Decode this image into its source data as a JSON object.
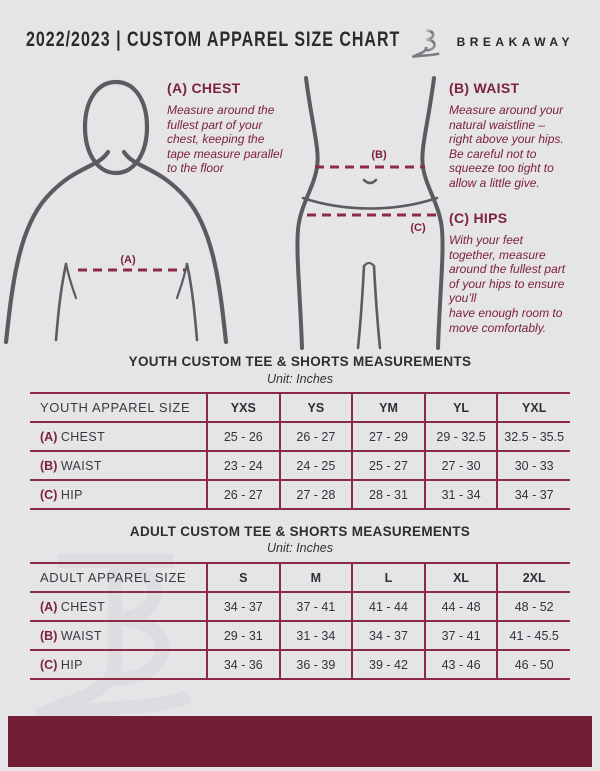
{
  "header": {
    "title": "2022/2023  |  CUSTOM APPAREL SIZE CHART",
    "brand": "BREAKAWAY"
  },
  "colors": {
    "background": "#e5e4e7",
    "maroon_text": "#7c2140",
    "table_line": "#8b2b45",
    "bottom_bar": "#741e36"
  },
  "measurements": [
    {
      "heading": "(A) CHEST",
      "body": "Measure around the\nfullest part of your\nchest, keeping the\ntape measure parallel\nto the floor"
    },
    {
      "heading": "(B) WAIST",
      "body": "Measure around your\nnatural waistline –\nright above your hips.\nBe careful not to\nsqueeze too tight to\nallow a little give."
    },
    {
      "heading": "(C) HIPS",
      "body": "With your feet\ntogether, measure\naround the fullest part\nof your hips to ensure\nyou’ll\nhave enough room to\nmove comfortably."
    }
  ],
  "diagram_labels": {
    "chest": "(A)",
    "waist": "(B)",
    "hips": "(C)"
  },
  "tables": {
    "youth": {
      "title": "YOUTH CUSTOM TEE & SHORTS MEASUREMENTS",
      "unit": "Unit: Inches",
      "columns": [
        "YOUTH APPAREL SIZE",
        "YXS",
        "YS",
        "YM",
        "YL",
        "YXL"
      ],
      "rows": [
        {
          "prefix": "(A)",
          "name": "CHEST",
          "values": [
            "25 - 26",
            "26 - 27",
            "27 - 29",
            "29 - 32.5",
            "32.5 - 35.5"
          ]
        },
        {
          "prefix": "(B)",
          "name": "WAIST",
          "values": [
            "23 - 24",
            "24 - 25",
            "25 - 27",
            "27 - 30",
            "30 - 33"
          ]
        },
        {
          "prefix": "(C)",
          "name": "HIP",
          "values": [
            "26 - 27",
            "27 - 28",
            "28 - 31",
            "31 - 34",
            "34 - 37"
          ]
        }
      ]
    },
    "adult": {
      "title": "ADULT CUSTOM TEE & SHORTS MEASUREMENTS",
      "unit": "Unit: Inches",
      "columns": [
        "ADULT APPAREL SIZE",
        "S",
        "M",
        "L",
        "XL",
        "2XL"
      ],
      "rows": [
        {
          "prefix": "(A)",
          "name": "CHEST",
          "values": [
            "34 - 37",
            "37 - 41",
            "41 - 44",
            "44 - 48",
            "48 - 52"
          ]
        },
        {
          "prefix": "(B)",
          "name": "WAIST",
          "values": [
            "29 - 31",
            "31 - 34",
            "34 - 37",
            "37 - 41",
            "41 - 45.5"
          ]
        },
        {
          "prefix": "(C)",
          "name": "HIP",
          "values": [
            "34 - 36",
            "36 - 39",
            "39 - 42",
            "43 - 46",
            "46 - 50"
          ]
        }
      ]
    }
  }
}
